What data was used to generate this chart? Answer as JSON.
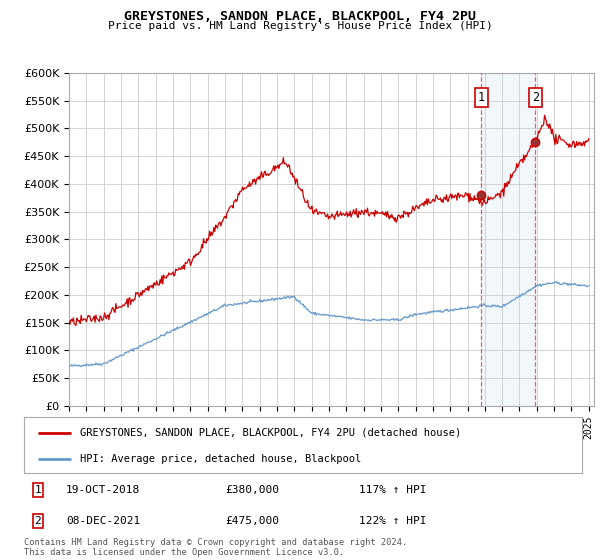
{
  "title": "GREYSTONES, SANDON PLACE, BLACKPOOL, FY4 2PU",
  "subtitle": "Price paid vs. HM Land Registry's House Price Index (HPI)",
  "legend_line1": "GREYSTONES, SANDON PLACE, BLACKPOOL, FY4 2PU (detached house)",
  "legend_line2": "HPI: Average price, detached house, Blackpool",
  "sale1_date": "19-OCT-2018",
  "sale1_price": "£380,000",
  "sale1_hpi": "117% ↑ HPI",
  "sale2_date": "08-DEC-2021",
  "sale2_price": "£475,000",
  "sale2_hpi": "122% ↑ HPI",
  "footer": "Contains HM Land Registry data © Crown copyright and database right 2024.\nThis data is licensed under the Open Government Licence v3.0.",
  "red_color": "#cc0000",
  "blue_color": "#6699cc",
  "background_color": "#ffffff",
  "grid_color": "#cccccc",
  "ylim": [
    0,
    600000
  ],
  "yticks": [
    0,
    50000,
    100000,
    150000,
    200000,
    250000,
    300000,
    350000,
    400000,
    450000,
    500000,
    550000,
    600000
  ],
  "sale1_x": 2018.79,
  "sale1_y": 380000,
  "sale2_x": 2021.92,
  "sale2_y": 475000,
  "shaded_region_start": 2018.79,
  "shaded_region_end": 2021.92,
  "xlim_start": 1995,
  "xlim_end": 2025.3
}
